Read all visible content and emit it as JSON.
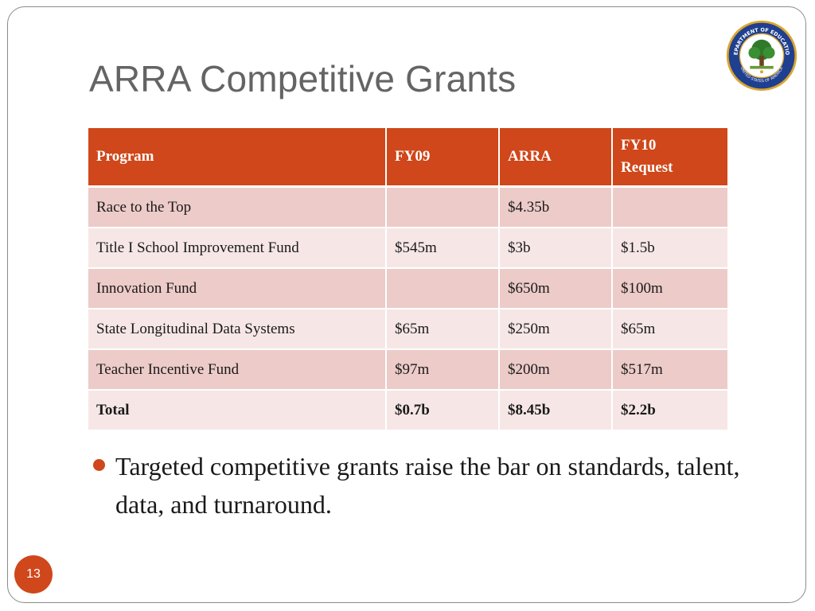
{
  "slide": {
    "title": "ARRA Competitive Grants",
    "seal": {
      "icon": "department-of-education-seal-icon",
      "text_top": "DEPARTMENT OF EDUCATION",
      "text_bottom": "UNITED STATES OF AMERICA"
    },
    "table": {
      "headers": [
        "Program",
        "FY09",
        "ARRA",
        "FY10 Request"
      ],
      "rows": [
        [
          "Race to the Top",
          "",
          "$4.35b",
          ""
        ],
        [
          "Title I School Improvement Fund",
          "$545m",
          "$3b",
          "$1.5b"
        ],
        [
          "Innovation Fund",
          "",
          "$650m",
          "$100m"
        ],
        [
          "State Longitudinal Data Systems",
          "$65m",
          "$250m",
          "$65m"
        ],
        [
          "Teacher Incentive Fund",
          "$97m",
          "$200m",
          "$517m"
        ]
      ],
      "total": [
        "Total",
        "$0.7b",
        "$8.45b",
        "$2.2b"
      ]
    },
    "bullets": [
      "Targeted competitive grants raise the bar on standards, talent, data, and turnaround."
    ],
    "page_number": "13",
    "colors": {
      "accent": "#cf471a",
      "row_dark": "#eccbc8",
      "row_light": "#f6e7e6",
      "title": "#646464"
    }
  }
}
